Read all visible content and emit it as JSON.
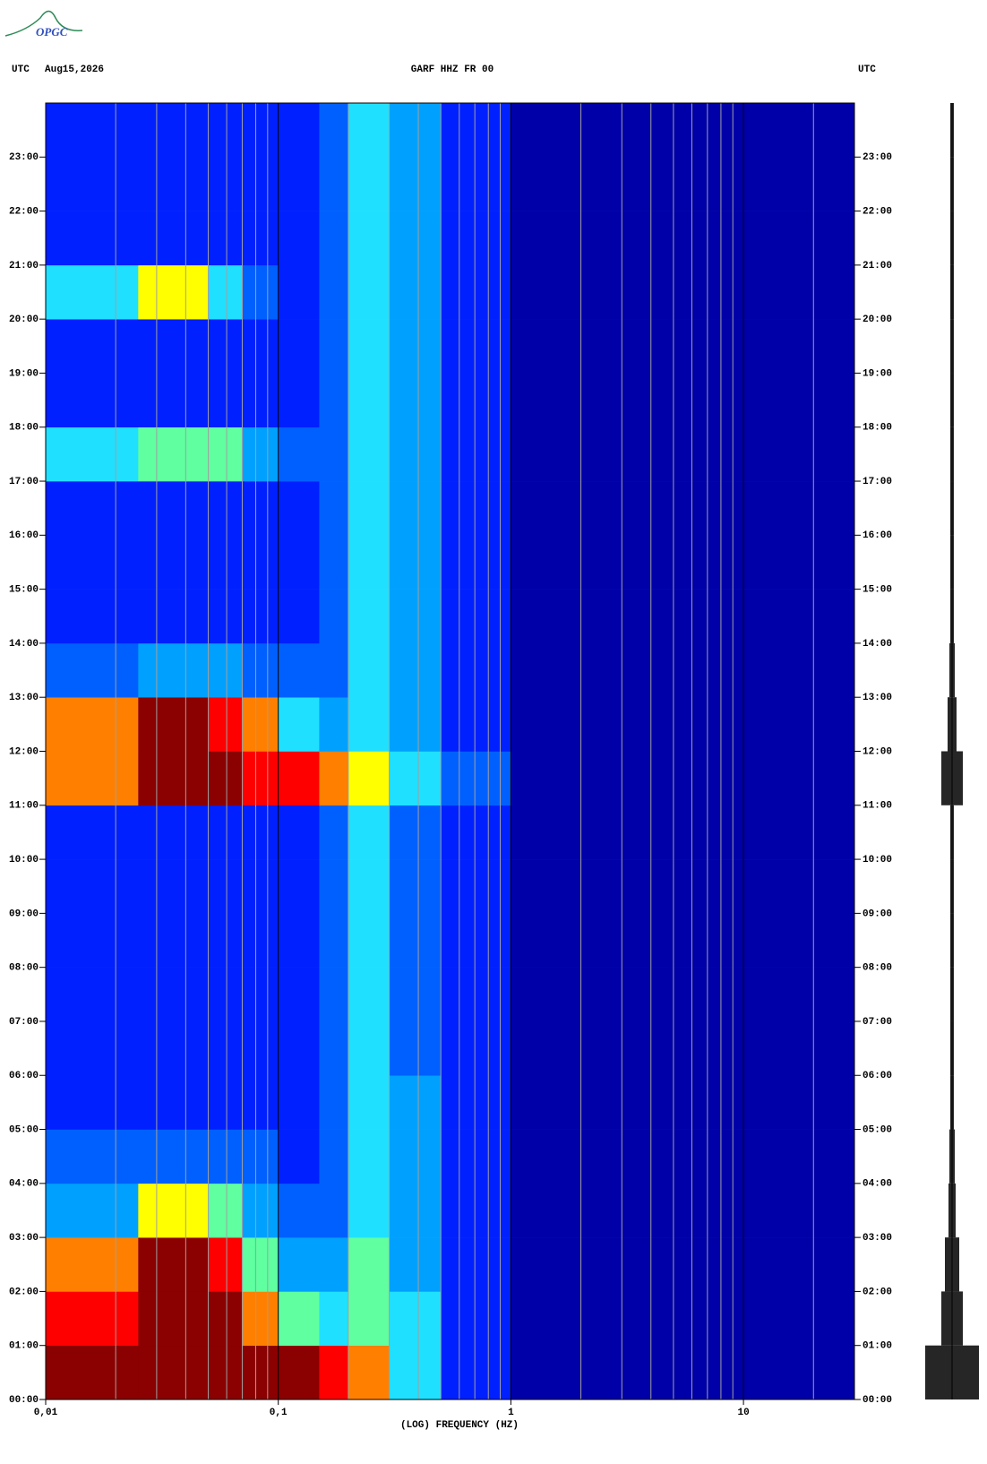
{
  "logo": "OPGC",
  "chart_data": {
    "type": "spectrogram",
    "header_left": "UTC",
    "date": "Aug15,2026",
    "title": "GARF HHZ FR 00",
    "header_right": "UTC",
    "xlabel": "(LOG) FREQUENCY (HZ)",
    "xscale": "log",
    "xlim": [
      0.01,
      30
    ],
    "xticks": [
      {
        "value": 0.01,
        "label": "0,01"
      },
      {
        "value": 0.1,
        "label": "0,1"
      },
      1,
      10
    ],
    "xminorticks": [
      0.02,
      0.03,
      0.04,
      0.05,
      0.06,
      0.07,
      0.08,
      0.09,
      0.2,
      0.3,
      0.4,
      0.5,
      0.6,
      0.7,
      0.8,
      0.9,
      2,
      3,
      4,
      5,
      6,
      7,
      8,
      9,
      20
    ],
    "ylim": [
      0,
      24
    ],
    "yticks": [
      {
        "value": 0,
        "label": "00:00"
      },
      {
        "value": 1,
        "label": "01:00"
      },
      {
        "value": 2,
        "label": "02:00"
      },
      {
        "value": 3,
        "label": "03:00"
      },
      {
        "value": 4,
        "label": "04:00"
      },
      {
        "value": 5,
        "label": "05:00"
      },
      {
        "value": 6,
        "label": "06:00"
      },
      {
        "value": 7,
        "label": "07:00"
      },
      {
        "value": 8,
        "label": "08:00"
      },
      {
        "value": 9,
        "label": "09:00"
      },
      {
        "value": 10,
        "label": "10:00"
      },
      {
        "value": 11,
        "label": "11:00"
      },
      {
        "value": 12,
        "label": "12:00"
      },
      {
        "value": 13,
        "label": "13:00"
      },
      {
        "value": 14,
        "label": "14:00"
      },
      {
        "value": 15,
        "label": "15:00"
      },
      {
        "value": 16,
        "label": "16:00"
      },
      {
        "value": 17,
        "label": "17:00"
      },
      {
        "value": 18,
        "label": "18:00"
      },
      {
        "value": 19,
        "label": "19:00"
      },
      {
        "value": 20,
        "label": "20:00"
      },
      {
        "value": 21,
        "label": "21:00"
      },
      {
        "value": 22,
        "label": "22:00"
      },
      {
        "value": 23,
        "label": "23:00"
      }
    ],
    "bins": [
      0.01,
      0.025,
      0.05,
      0.07,
      0.1,
      0.15,
      0.2,
      0.3,
      0.5,
      1,
      30
    ],
    "time_bins": [
      0,
      1,
      2,
      3,
      4,
      5,
      6,
      7,
      8,
      9,
      10,
      11,
      12,
      13,
      14,
      15,
      16,
      17,
      18,
      19,
      20,
      21,
      22,
      23,
      24
    ],
    "colormap": [
      "#00008b",
      "#0000a8",
      "#0020ff",
      "#0060ff",
      "#00a0ff",
      "#20e0ff",
      "#60ffa0",
      "#ffff00",
      "#ff8000",
      "#ff0000",
      "#8b0000"
    ],
    "values": [
      [
        10,
        10,
        10,
        10,
        10,
        9,
        8,
        5,
        2,
        1
      ],
      [
        9,
        10,
        10,
        8,
        6,
        5,
        6,
        5,
        2,
        1
      ],
      [
        8,
        10,
        9,
        6,
        4,
        4,
        6,
        4,
        2,
        1
      ],
      [
        4,
        7,
        6,
        4,
        3,
        3,
        5,
        4,
        2,
        1
      ],
      [
        3,
        3,
        3,
        3,
        2,
        3,
        5,
        4,
        2,
        1
      ],
      [
        2,
        2,
        2,
        2,
        2,
        3,
        5,
        4,
        2,
        1
      ],
      [
        2,
        2,
        2,
        2,
        2,
        3,
        5,
        3,
        2,
        1
      ],
      [
        2,
        2,
        2,
        2,
        2,
        3,
        5,
        3,
        2,
        1
      ],
      [
        2,
        2,
        2,
        2,
        2,
        3,
        5,
        3,
        2,
        1
      ],
      [
        2,
        2,
        2,
        2,
        2,
        3,
        5,
        3,
        2,
        1
      ],
      [
        2,
        2,
        2,
        2,
        2,
        3,
        5,
        3,
        2,
        1
      ],
      [
        8,
        10,
        10,
        9,
        9,
        8,
        7,
        5,
        3,
        1
      ],
      [
        8,
        10,
        9,
        8,
        5,
        4,
        5,
        4,
        2,
        1
      ],
      [
        3,
        4,
        4,
        3,
        3,
        3,
        5,
        4,
        2,
        1
      ],
      [
        2,
        2,
        2,
        2,
        2,
        3,
        5,
        4,
        2,
        1
      ],
      [
        2,
        2,
        2,
        2,
        2,
        3,
        5,
        4,
        2,
        1
      ],
      [
        2,
        2,
        2,
        2,
        2,
        3,
        5,
        4,
        2,
        1
      ],
      [
        5,
        6,
        6,
        4,
        3,
        3,
        5,
        4,
        2,
        1
      ],
      [
        2,
        2,
        2,
        2,
        2,
        3,
        5,
        4,
        2,
        1
      ],
      [
        2,
        2,
        2,
        2,
        2,
        3,
        5,
        4,
        2,
        1
      ],
      [
        5,
        7,
        5,
        3,
        2,
        3,
        5,
        4,
        2,
        1
      ],
      [
        2,
        2,
        2,
        2,
        2,
        3,
        5,
        4,
        2,
        1
      ],
      [
        2,
        2,
        2,
        2,
        2,
        3,
        5,
        4,
        2,
        1
      ],
      [
        2,
        2,
        2,
        2,
        2,
        3,
        5,
        4,
        2,
        1
      ]
    ],
    "trace": {
      "color": "#000000",
      "values": [
        30,
        12,
        8,
        4,
        3,
        2,
        2,
        2,
        2,
        2,
        2,
        12,
        5,
        3,
        2,
        2,
        2,
        2,
        2,
        2,
        2,
        2,
        2,
        2
      ]
    }
  }
}
